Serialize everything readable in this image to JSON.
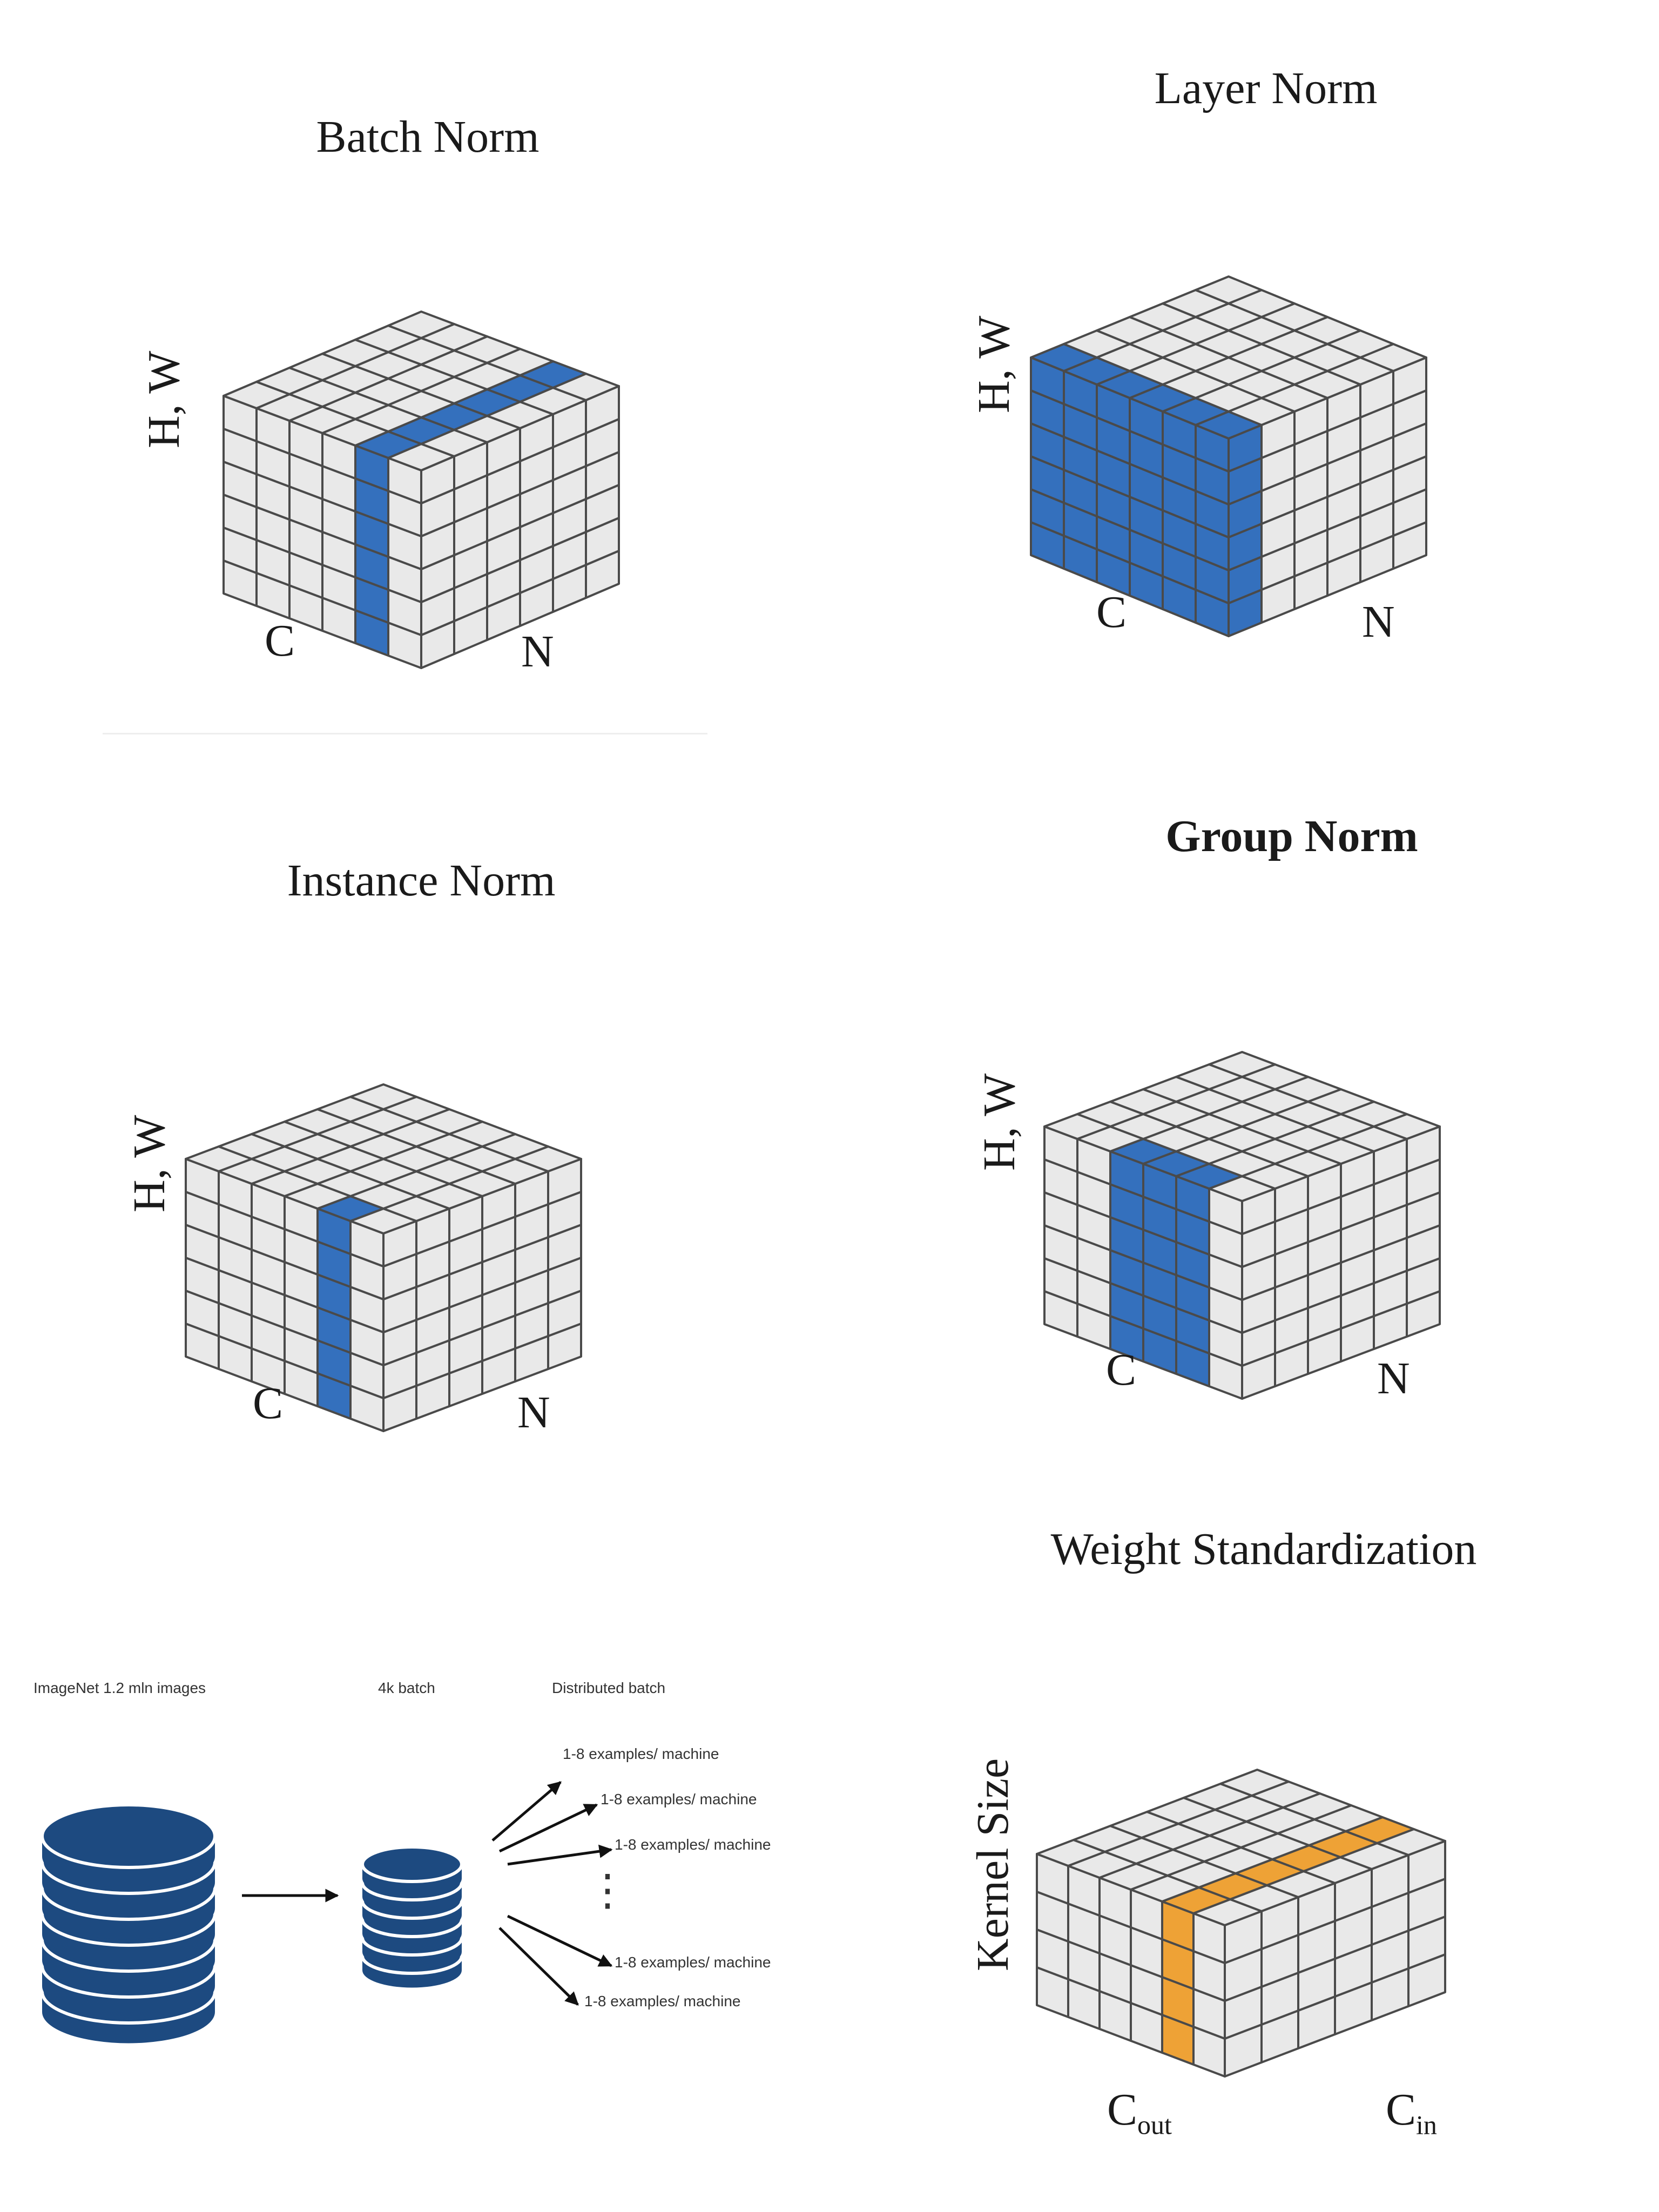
{
  "diagrams": [
    {
      "id": "batch-norm",
      "title": "Batch Norm",
      "vertical_axis": "H, W",
      "left_axis": "C",
      "right_axis": "N",
      "highlight_color": "#3470bd",
      "highlighted_cells": "N × H·W for one C"
    },
    {
      "id": "layer-norm",
      "title": "Layer Norm",
      "vertical_axis": "H, W",
      "left_axis": "C",
      "right_axis": "N",
      "highlight_color": "#3470bd",
      "highlighted_cells": "C × H·W for one N"
    },
    {
      "id": "instance-norm",
      "title": "Instance Norm",
      "vertical_axis": "H, W",
      "left_axis": "C",
      "right_axis": "N",
      "highlight_color": "#3470bd",
      "highlighted_cells": "H·W for one C and one N"
    },
    {
      "id": "group-norm",
      "title": "Group Norm",
      "vertical_axis": "H, W",
      "left_axis": "C",
      "right_axis": "N",
      "highlight_color": "#3470bd",
      "highlighted_cells": "group of C × H·W for one N"
    },
    {
      "id": "weight-standardization",
      "title": "Weight Standardization",
      "vertical_axis": "Kernel Size",
      "left_axis": {
        "base": "C",
        "sub": "out"
      },
      "right_axis": {
        "base": "C",
        "sub": "in"
      },
      "highlight_color": "#eea236"
    }
  ],
  "distributed": {
    "dataset_label": "ImageNet 1.2 mln images",
    "batch_label": "4k batch",
    "distributed_label": "Distributed batch",
    "machine_labels": [
      "1-8 examples/ machine",
      "1-8 examples/ machine",
      "1-8 examples/ machine",
      "1-8 examples/ machine",
      "1-8 examples/ machine"
    ],
    "ellipsis": "⋮",
    "db_color": "#1d4a80"
  },
  "colors": {
    "cell_face": "#e9e9e9",
    "cell_edge": "#4a4a4a",
    "blue": "#3470bd",
    "orange": "#eea236"
  }
}
